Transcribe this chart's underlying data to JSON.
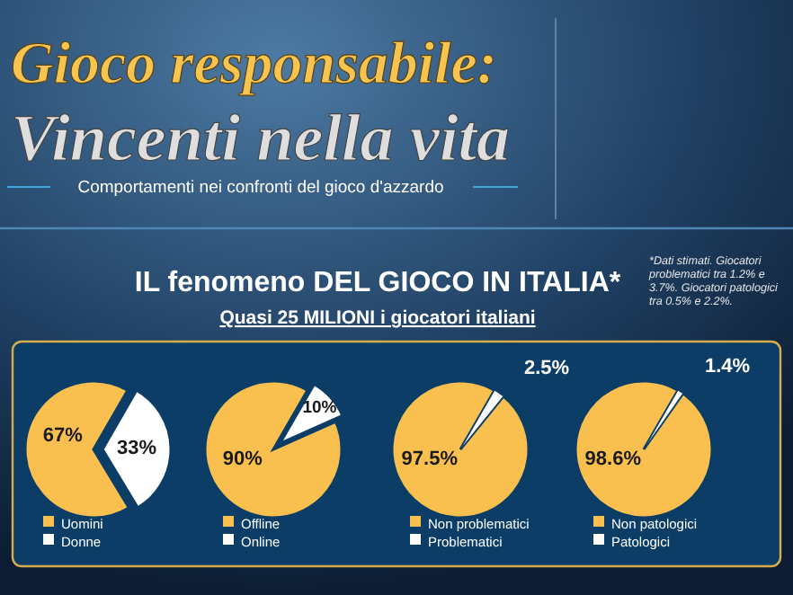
{
  "chart_data": [
    {
      "type": "other",
      "title": "Gioco responsabile:",
      "subtitle": "Vincenti nella vita",
      "annotations": [
        "Comportamenti nei confronti del gioco d'azzardo",
        "IL fenomeno DEL GIOCO IN ITALIA*",
        "Quasi 25 MILIONI i giocatori italiani",
        "*Dati stimati. Giocatori problematici tra 1.2% e 3.7%. Giocatori patologici tra 0.5% e 2.2%."
      ]
    },
    {
      "type": "pie",
      "categories": [
        "Uomini",
        "Donne"
      ],
      "values": [
        67,
        33
      ],
      "colors": [
        "#f9c04f",
        "#ffffff"
      ],
      "value_labels": [
        "67%",
        "33%"
      ],
      "legend": "bottom"
    },
    {
      "type": "pie",
      "categories": [
        "Offline",
        "Online"
      ],
      "values": [
        90,
        10
      ],
      "colors": [
        "#f9c04f",
        "#ffffff"
      ],
      "value_labels": [
        "90%",
        "10%"
      ],
      "legend": "bottom"
    },
    {
      "type": "pie",
      "categories": [
        "Non problematici",
        "Problematici"
      ],
      "values": [
        97.5,
        2.5
      ],
      "colors": [
        "#f9c04f",
        "#ffffff"
      ],
      "value_labels": [
        "97.5%",
        "2.5%"
      ],
      "legend": "bottom"
    },
    {
      "type": "pie",
      "categories": [
        "Non patologici",
        "Patologici"
      ],
      "values": [
        98.6,
        1.4
      ],
      "colors": [
        "#f9c04f",
        "#ffffff"
      ],
      "value_labels": [
        "98.6%",
        "1.4%"
      ],
      "legend": "bottom"
    }
  ]
}
